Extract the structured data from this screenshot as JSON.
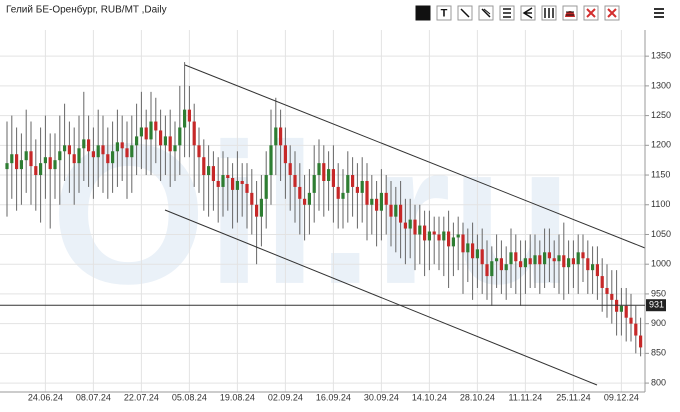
{
  "chart_data": {
    "type": "candlestick",
    "title": "Гелий БЕ-Оренбург, RUB/MT ,Daily",
    "watermark": "Oil.ru",
    "toolbar_text": "T",
    "categories": [
      null,
      null,
      null,
      null,
      null,
      null,
      null,
      null,
      "24.06.24",
      null,
      null,
      null,
      null,
      null,
      null,
      null,
      null,
      null,
      "08.07.24",
      null,
      null,
      null,
      null,
      null,
      null,
      null,
      null,
      null,
      "22.07.24",
      null,
      null,
      null,
      null,
      null,
      null,
      null,
      null,
      null,
      "05.08.24",
      null,
      null,
      null,
      null,
      null,
      null,
      null,
      null,
      null,
      "19.08.24",
      null,
      null,
      null,
      null,
      null,
      null,
      null,
      null,
      null,
      "02.09.24",
      null,
      null,
      null,
      null,
      null,
      null,
      null,
      null,
      null,
      "16.09.24",
      null,
      null,
      null,
      null,
      null,
      null,
      null,
      null,
      null,
      "30.09.24",
      null,
      null,
      null,
      null,
      null,
      null,
      null,
      null,
      null,
      "14.10.24",
      null,
      null,
      null,
      null,
      null,
      null,
      null,
      null,
      null,
      "28.10.24",
      null,
      null,
      null,
      null,
      null,
      null,
      null,
      null,
      null,
      "11.11.24",
      null,
      null,
      null,
      null,
      null,
      null,
      null,
      null,
      null,
      "25.11.24",
      null,
      null,
      null,
      null,
      null,
      null,
      null,
      null,
      null,
      "09.12.24",
      null,
      null,
      null,
      null
    ],
    "open": [
      1160,
      1170,
      1185,
      1160,
      1175,
      1190,
      1165,
      1150,
      1170,
      1180,
      1160,
      1175,
      1190,
      1200,
      1185,
      1170,
      1195,
      1210,
      1190,
      1180,
      1200,
      1185,
      1170,
      1190,
      1205,
      1195,
      1180,
      1200,
      1215,
      1230,
      1210,
      1240,
      1225,
      1200,
      1215,
      1190,
      1200,
      1230,
      1260,
      1240,
      1200,
      1180,
      1150,
      1165,
      1140,
      1130,
      1150,
      1145,
      1125,
      1140,
      1135,
      1120,
      1100,
      1080,
      1110,
      1150,
      1200,
      1230,
      1200,
      1170,
      1150,
      1130,
      1110,
      1100,
      1120,
      1150,
      1170,
      1140,
      1160,
      1130,
      1110,
      1120,
      1150,
      1130,
      1120,
      1140,
      1100,
      1110,
      1090,
      1120,
      1100,
      1080,
      1100,
      1070,
      1060,
      1075,
      1050,
      1065,
      1040,
      1055,
      1050,
      1040,
      1055,
      1030,
      1045,
      1050,
      1020,
      1035,
      1010,
      1025,
      1000,
      980,
      1005,
      1010,
      990,
      1000,
      1020,
      1005,
      995,
      1010,
      1000,
      1015,
      1000,
      1020,
      1010,
      1005,
      1015,
      995,
      1010,
      1000,
      1020,
      1010,
      990,
      1000,
      980,
      960,
      950,
      940,
      920,
      930,
      910,
      900,
      880
    ],
    "high": [
      1240,
      1250,
      1230,
      1220,
      1260,
      1240,
      1210,
      1230,
      1250,
      1220,
      1220,
      1250,
      1270,
      1240,
      1230,
      1250,
      1290,
      1250,
      1230,
      1260,
      1250,
      1230,
      1240,
      1260,
      1250,
      1240,
      1250,
      1270,
      1290,
      1260,
      1290,
      1280,
      1260,
      1250,
      1260,
      1240,
      1300,
      1340,
      1300,
      1270,
      1230,
      1210,
      1200,
      1190,
      1180,
      1190,
      1180,
      1170,
      1190,
      1170,
      1170,
      1160,
      1140,
      1150,
      1190,
      1260,
      1280,
      1260,
      1230,
      1200,
      1190,
      1170,
      1150,
      1160,
      1200,
      1210,
      1200,
      1190,
      1200,
      1170,
      1160,
      1190,
      1180,
      1170,
      1180,
      1170,
      1150,
      1140,
      1160,
      1150,
      1140,
      1130,
      1140,
      1110,
      1110,
      1100,
      1100,
      1090,
      1090,
      1080,
      1080,
      1080,
      1090,
      1070,
      1080,
      1070,
      1060,
      1070,
      1050,
      1060,
      1040,
      1030,
      1050,
      1040,
      1030,
      1060,
      1050,
      1040,
      1040,
      1050,
      1050,
      1040,
      1060,
      1060,
      1040,
      1050,
      1070,
      1040,
      1040,
      1050,
      1050,
      1040,
      1030,
      1030,
      1010,
      1000,
      990,
      990,
      960,
      960,
      950,
      930,
      910
    ],
    "low": [
      1080,
      1110,
      1090,
      1100,
      1120,
      1100,
      1090,
      1070,
      1110,
      1060,
      1110,
      1100,
      1140,
      1120,
      1100,
      1120,
      1140,
      1130,
      1110,
      1130,
      1120,
      1110,
      1120,
      1130,
      1140,
      1110,
      1120,
      1150,
      1160,
      1150,
      1150,
      1170,
      1140,
      1150,
      1130,
      1140,
      1150,
      1180,
      1180,
      1130,
      1120,
      1090,
      1080,
      1090,
      1070,
      1080,
      1090,
      1060,
      1070,
      1080,
      1060,
      1050,
      1000,
      1030,
      1060,
      1100,
      1150,
      1140,
      1110,
      1090,
      1070,
      1050,
      1040,
      1050,
      1070,
      1090,
      1080,
      1090,
      1070,
      1060,
      1060,
      1070,
      1080,
      1060,
      1070,
      1040,
      1050,
      1030,
      1040,
      1050,
      1030,
      1020,
      1010,
      1000,
      1010,
      990,
      1000,
      980,
      990,
      1000,
      990,
      980,
      960,
      980,
      990,
      950,
      970,
      940,
      960,
      950,
      940,
      930,
      960,
      950,
      940,
      960,
      950,
      930,
      950,
      960,
      960,
      950,
      960,
      970,
      960,
      950,
      940,
      950,
      960,
      950,
      970,
      950,
      950,
      940,
      920,
      910,
      900,
      880,
      880,
      870,
      870,
      850,
      845
    ],
    "close": [
      1170,
      1185,
      1160,
      1175,
      1190,
      1165,
      1150,
      1170,
      1180,
      1160,
      1175,
      1190,
      1200,
      1185,
      1170,
      1195,
      1210,
      1190,
      1180,
      1200,
      1185,
      1170,
      1190,
      1205,
      1195,
      1180,
      1200,
      1215,
      1230,
      1210,
      1240,
      1225,
      1200,
      1215,
      1190,
      1200,
      1230,
      1260,
      1240,
      1200,
      1180,
      1150,
      1165,
      1140,
      1130,
      1150,
      1145,
      1125,
      1140,
      1135,
      1120,
      1100,
      1080,
      1110,
      1150,
      1200,
      1230,
      1200,
      1170,
      1150,
      1130,
      1110,
      1100,
      1120,
      1150,
      1170,
      1140,
      1160,
      1130,
      1110,
      1120,
      1150,
      1130,
      1120,
      1140,
      1100,
      1110,
      1090,
      1120,
      1100,
      1080,
      1100,
      1070,
      1060,
      1075,
      1050,
      1065,
      1040,
      1055,
      1050,
      1040,
      1055,
      1030,
      1045,
      1050,
      1020,
      1035,
      1010,
      1025,
      1000,
      980,
      1005,
      1010,
      990,
      1000,
      1020,
      1005,
      995,
      1010,
      1000,
      1015,
      1000,
      1020,
      1010,
      1005,
      1015,
      995,
      1010,
      1000,
      1020,
      1010,
      990,
      1000,
      980,
      960,
      950,
      940,
      920,
      930,
      910,
      900,
      880,
      860
    ],
    "up_color": "#2e7d32",
    "down_color": "#c62828",
    "ylim": [
      785,
      1394
    ],
    "yticks": [
      800,
      850,
      900,
      950,
      1000,
      1050,
      1100,
      1150,
      1200,
      1250,
      1300,
      1350
    ],
    "grid": true,
    "price_line": 931
  }
}
